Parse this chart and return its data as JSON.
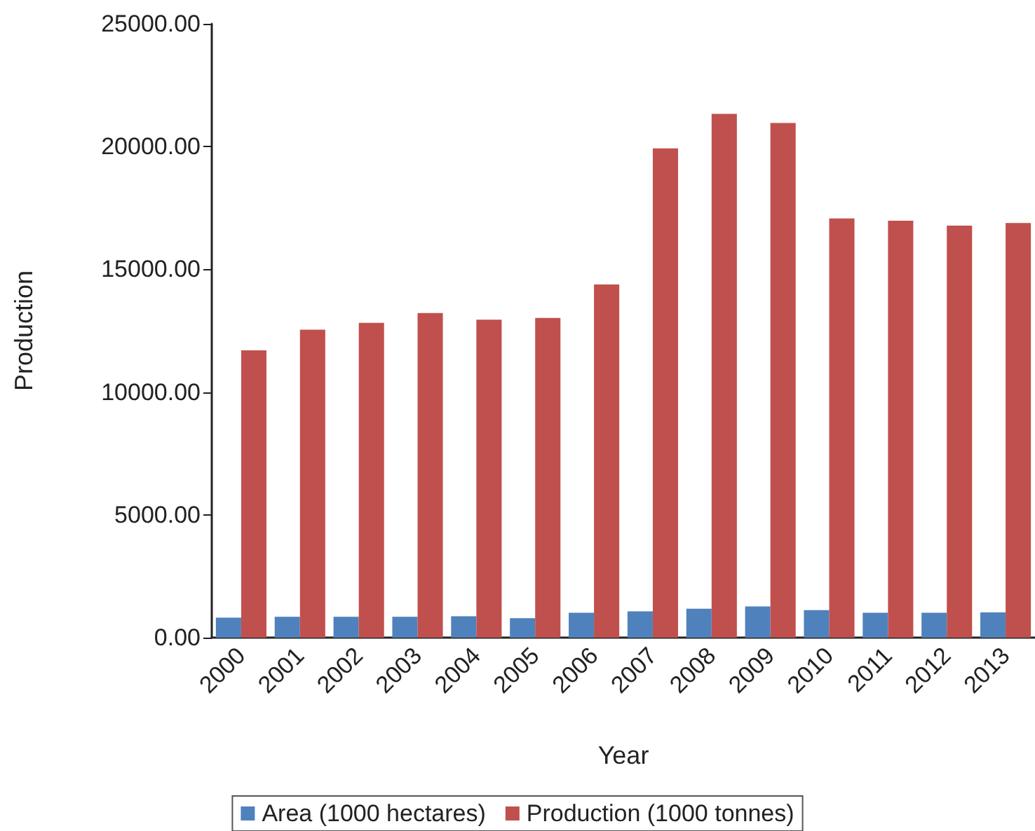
{
  "chart_data": {
    "type": "bar",
    "xlabel": "Year",
    "ylabel": "Production",
    "categories": [
      "2000",
      "2001",
      "2002",
      "2003",
      "2004",
      "2005",
      "2006",
      "2007",
      "2008",
      "2009",
      "2010",
      "2011",
      "2012",
      "2013"
    ],
    "series": [
      {
        "name": "Area (1000 hectares)",
        "color": "#4f81bd",
        "values": [
          810,
          850,
          850,
          850,
          870,
          790,
          1010,
          1070,
          1180,
          1270,
          1120,
          1010,
          1010,
          1030
        ]
      },
      {
        "name": "Production (1000 tonnes)",
        "color": "#c0504d",
        "values": [
          11700,
          12540,
          12820,
          13220,
          12950,
          13020,
          14380,
          19930,
          21330,
          20960,
          17070,
          16980,
          16780,
          16890
        ]
      }
    ],
    "ylim": [
      0,
      25000
    ],
    "yticks": [
      {
        "value": 0,
        "label": "0.00"
      },
      {
        "value": 5000,
        "label": "5000.00"
      },
      {
        "value": 10000,
        "label": "10000.00"
      },
      {
        "value": 15000,
        "label": "15000.00"
      },
      {
        "value": 20000,
        "label": "20000.00"
      },
      {
        "value": 25000,
        "label": "25000.00"
      }
    ],
    "grid": false,
    "legend": "bottom"
  }
}
